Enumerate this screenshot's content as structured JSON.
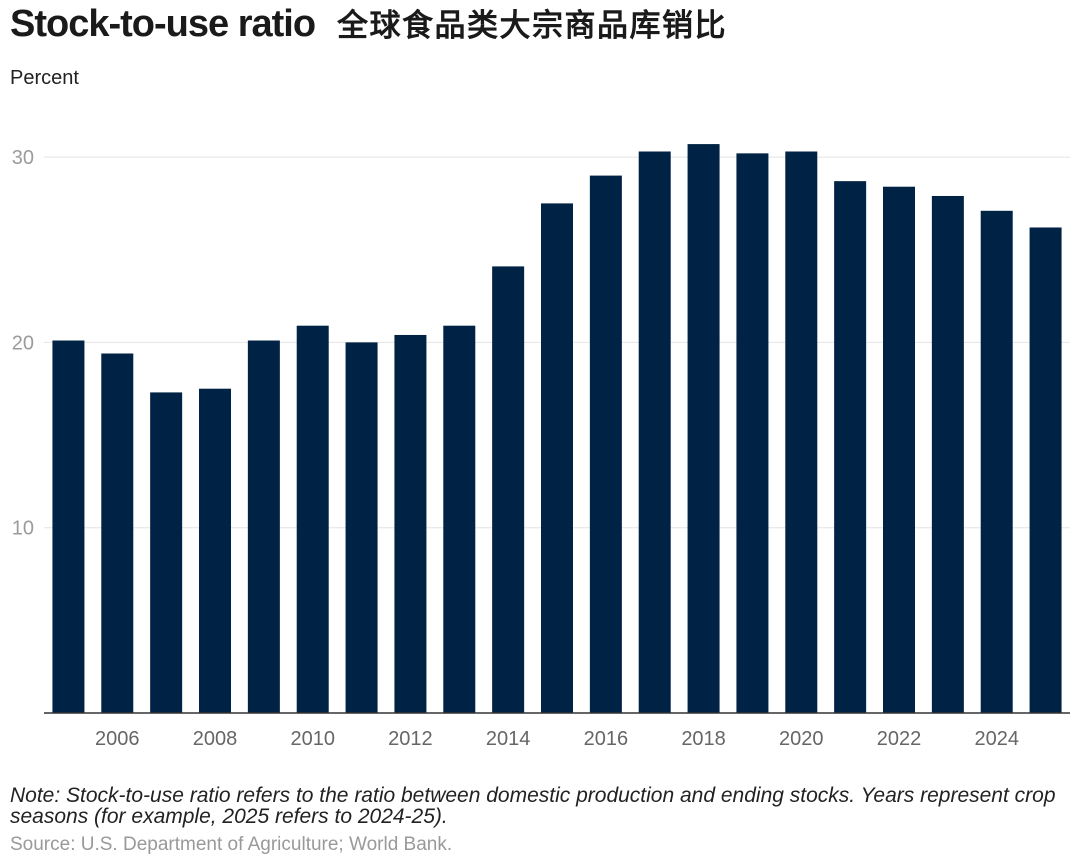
{
  "chart_data": {
    "type": "bar",
    "title": "Stock-to-use ratio",
    "title_zh": "全球食品类大宗商品库销比",
    "ylabel": "Percent",
    "x": [
      2005,
      2006,
      2007,
      2008,
      2009,
      2010,
      2011,
      2012,
      2013,
      2014,
      2015,
      2016,
      2017,
      2018,
      2019,
      2020,
      2021,
      2022,
      2023,
      2024,
      2025
    ],
    "values": [
      20.1,
      19.4,
      17.3,
      17.5,
      20.1,
      20.9,
      20.0,
      20.4,
      20.9,
      24.1,
      27.5,
      29.0,
      30.3,
      30.7,
      30.2,
      30.3,
      28.7,
      28.4,
      27.9,
      27.1,
      26.2
    ],
    "xticks": [
      2006,
      2008,
      2010,
      2012,
      2014,
      2016,
      2018,
      2020,
      2022,
      2024
    ],
    "yticks": [
      10,
      20,
      30
    ],
    "ylim": [
      0,
      32
    ],
    "grid": true,
    "bar_color": "#002244",
    "note": "Note: Stock-to-use ratio refers to the ratio between domestic production and ending stocks. Years represent crop seasons (for example, 2025 refers to 2024-25).",
    "source": "Source: U.S. Department of Agriculture; World Bank."
  }
}
